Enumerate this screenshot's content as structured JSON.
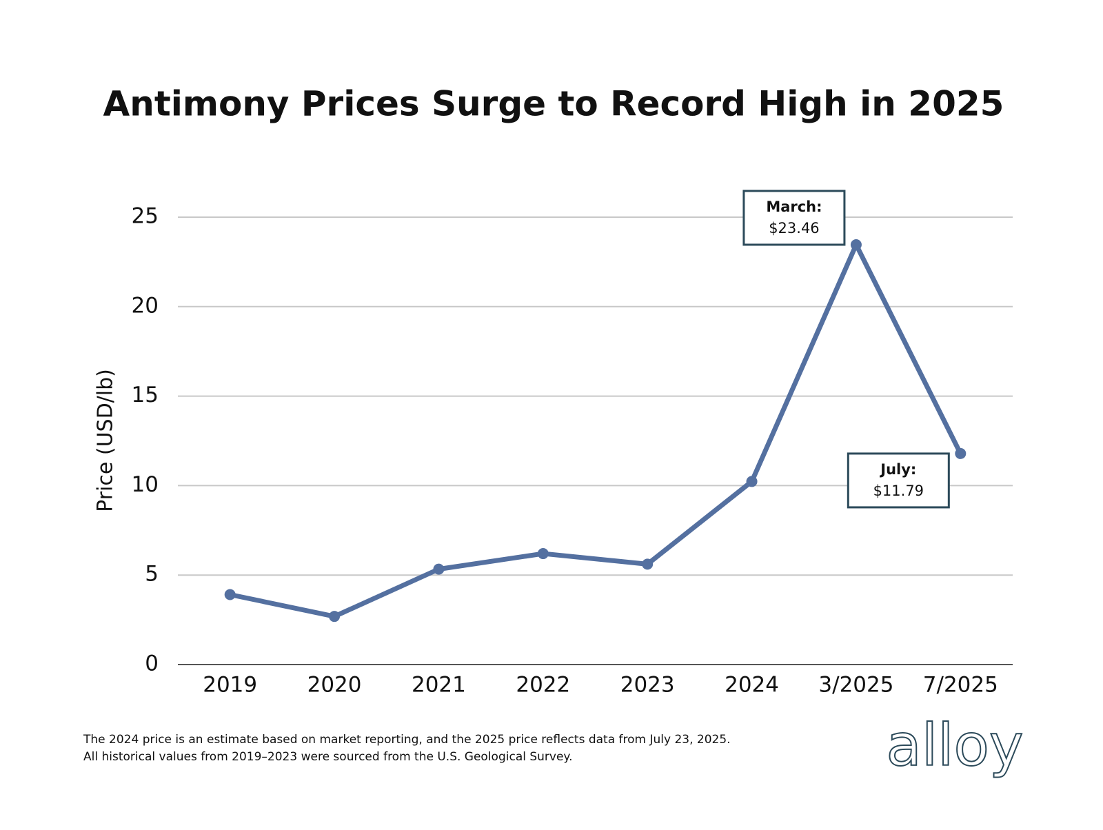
{
  "chart_data": {
    "type": "line",
    "title": "Antimony Prices Surge to Record High in 2025",
    "y_label": "Price (USD/lb)",
    "categories": [
      "2019",
      "2020",
      "2021",
      "2022",
      "2023",
      "2024",
      "3/2025",
      "7/2025"
    ],
    "values": [
      3.91,
      2.69,
      5.33,
      6.2,
      5.61,
      10.23,
      23.46,
      11.79
    ],
    "value_labels": [
      null,
      null,
      null,
      null,
      null,
      null,
      "$23.46",
      "$11.79"
    ],
    "value_label_titles": [
      null,
      null,
      null,
      null,
      null,
      null,
      "March:",
      "July:"
    ],
    "color": "#5470a0",
    "ylim": [
      0,
      25
    ],
    "yticks": [
      0,
      5,
      10,
      15,
      20,
      25
    ],
    "grid": true,
    "footnotes": [
      "The 2024 price is an estimate based on market reporting, and the 2025 price reflects data from July 23, 2025.",
      "All historical values from 2019–2023 were sourced from the U.S. Geological Survey."
    ],
    "logo": "alloy"
  }
}
